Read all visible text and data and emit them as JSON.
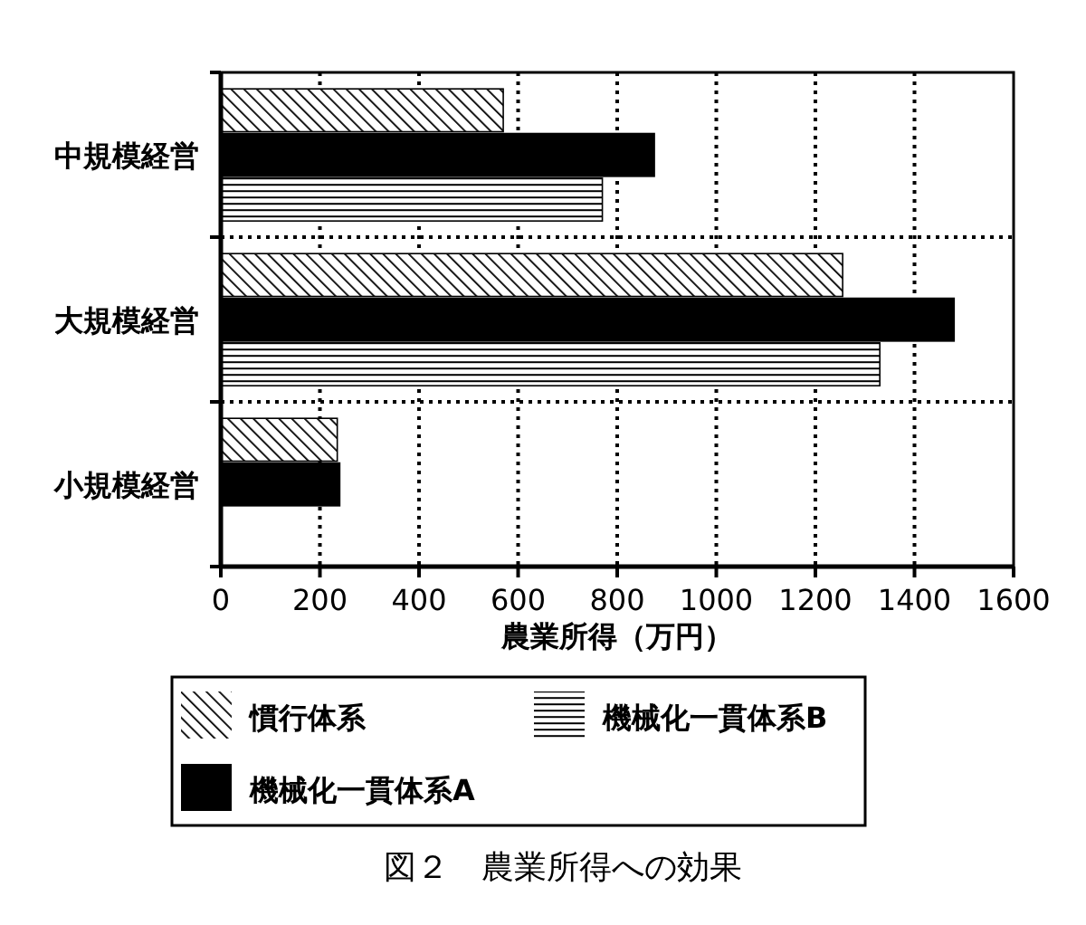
{
  "chart_data": {
    "type": "bar",
    "orientation": "horizontal",
    "title": "図２　農業所得への効果",
    "xlabel": "農業所得（万円）",
    "categories": [
      "中規模経営",
      "大規模経営",
      "小規模経営"
    ],
    "series": [
      {
        "name": "慣行体系",
        "color": "#000000",
        "values": [
          570,
          1255,
          235
        ]
      },
      {
        "name": "機械化一貫体系A",
        "color": "#000000",
        "values": [
          875,
          1480,
          240
        ]
      },
      {
        "name": "機械化一貫体系B",
        "color": "#000000",
        "values": [
          770,
          1330,
          null
        ]
      }
    ],
    "xlim": [
      0,
      1600
    ],
    "xticks": [
      0,
      200,
      400,
      600,
      800,
      1000,
      1200,
      1400,
      1600
    ],
    "grid": true,
    "legend": "bottom"
  }
}
